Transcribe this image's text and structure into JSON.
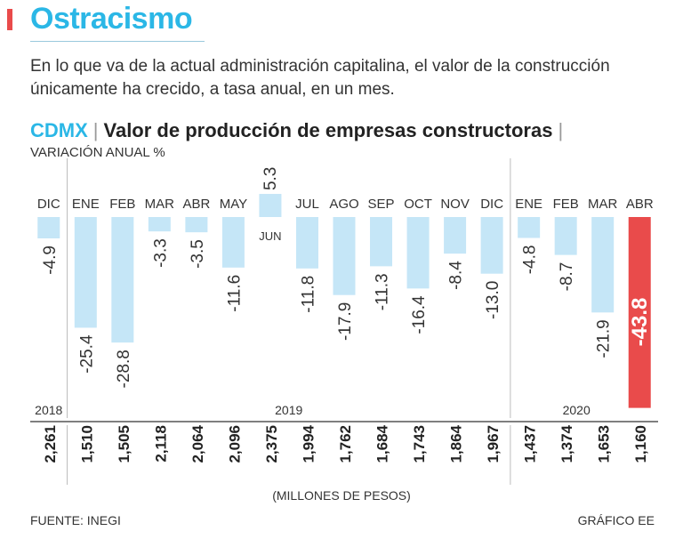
{
  "header": {
    "title": "Ostracismo",
    "subtitle": "En lo que va de la actual administración capitalina, el valor de la construcción únicamente ha crecido, a tasa anual, en un mes."
  },
  "chart_heading": {
    "region": "CDMX",
    "separator": "|",
    "name": "Valor de producción de empresas constructoras",
    "trailing_separator": "|"
  },
  "footer": {
    "source": "FUENTE: INEGI",
    "credit": "GRÁFICO EE",
    "units_note": "(MILLONES DE PESOS)"
  },
  "colors": {
    "accent": "#2bb7e6",
    "bar": "#c5e6f7",
    "highlight_bar": "#e94b4b",
    "divider": "#bdbdbd"
  },
  "chart_data": {
    "type": "bar",
    "ylabel": "VARIACIÓN ANUAL %",
    "categories": [
      "DIC",
      "ENE",
      "FEB",
      "MAR",
      "ABR",
      "MAY",
      "JUN",
      "JUL",
      "AGO",
      "SEP",
      "OCT",
      "NOV",
      "DIC",
      "ENE",
      "FEB",
      "MAR",
      "ABR"
    ],
    "value_labels": [
      "-4.9",
      "-25.4",
      "-28.8",
      "-3.3",
      "-3.5",
      "-11.6",
      "5.3",
      "-11.8",
      "-17.9",
      "-11.3",
      "-16.4",
      "-8.4",
      "-13.0",
      "-4.8",
      "-8.7",
      "-21.9",
      "-43.8"
    ],
    "values": [
      -4.9,
      -25.4,
      -28.8,
      -3.3,
      -3.5,
      -11.6,
      5.3,
      -11.8,
      -17.9,
      -11.3,
      -16.4,
      -8.4,
      -13.0,
      -4.8,
      -8.7,
      -21.9,
      -43.8
    ],
    "highlight_index": 16,
    "years": [
      {
        "label": "2018",
        "start": 0,
        "end": 0
      },
      {
        "label": "2019",
        "start": 1,
        "end": 12
      },
      {
        "label": "2020",
        "start": 13,
        "end": 16
      }
    ],
    "production_values": [
      "2,261",
      "1,510",
      "1,505",
      "2,118",
      "2,064",
      "2,096",
      "2,375",
      "1,994",
      "1,762",
      "1,684",
      "1,743",
      "1,864",
      "1,967",
      "1,437",
      "1,374",
      "1,653",
      "1,160"
    ],
    "production_units": "MILLONES DE PESOS"
  }
}
